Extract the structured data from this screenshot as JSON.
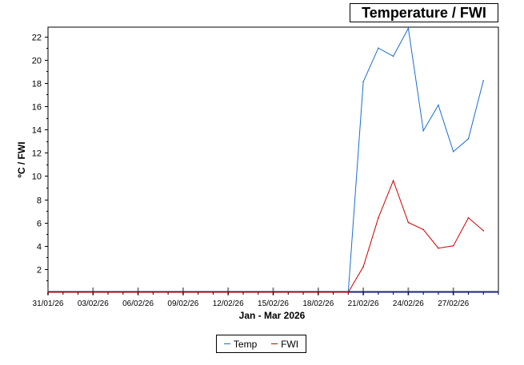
{
  "chart_data": {
    "type": "line",
    "title": "Temperature / FWI",
    "xlabel": "Jan - Mar 2026",
    "ylabel": "ºC / FWI",
    "x_tick_labels": [
      "31/01/26",
      "03/02/26",
      "06/02/26",
      "09/02/26",
      "12/02/26",
      "15/02/26",
      "18/02/26",
      "21/02/26",
      "24/02/26",
      "27/02/26"
    ],
    "y_ticks": [
      2,
      4,
      6,
      8,
      10,
      12,
      14,
      16,
      18,
      20,
      22
    ],
    "xlim": [
      "2026-01-31",
      "2026-03-02"
    ],
    "ylim": [
      0,
      22.8
    ],
    "legend_position": "bottom-center",
    "series": [
      {
        "name": "Temp",
        "color": "#1a6fcf",
        "points": [
          [
            "2026-01-31",
            0
          ],
          [
            "2026-02-20",
            0
          ],
          [
            "2026-02-21",
            18.1
          ],
          [
            "2026-02-22",
            21.0
          ],
          [
            "2026-02-23",
            20.3
          ],
          [
            "2026-02-24",
            22.7
          ],
          [
            "2026-02-25",
            13.9
          ],
          [
            "2026-02-26",
            16.1
          ],
          [
            "2026-02-27",
            12.1
          ],
          [
            "2026-02-28",
            13.2
          ],
          [
            "2026-03-01",
            18.2
          ]
        ]
      },
      {
        "name": "FWI",
        "color": "#cc0000",
        "points": [
          [
            "2026-01-31",
            0
          ],
          [
            "2026-02-20",
            0
          ],
          [
            "2026-02-21",
            2.2
          ],
          [
            "2026-02-22",
            6.4
          ],
          [
            "2026-02-23",
            9.6
          ],
          [
            "2026-02-24",
            6.0
          ],
          [
            "2026-02-25",
            5.4
          ],
          [
            "2026-02-26",
            3.8
          ],
          [
            "2026-02-27",
            4.0
          ],
          [
            "2026-02-28",
            6.4
          ],
          [
            "2026-03-01",
            5.3
          ]
        ]
      }
    ]
  }
}
